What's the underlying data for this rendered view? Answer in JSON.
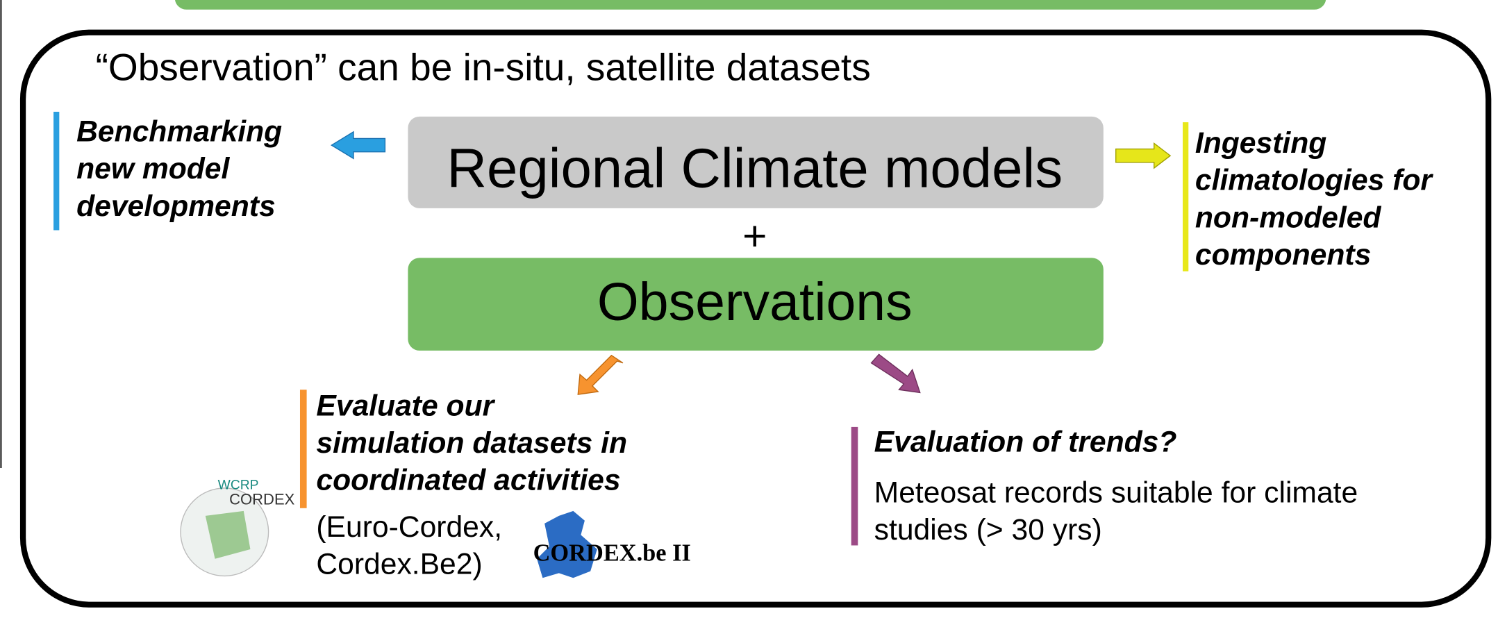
{
  "heading": "“Observation” can be in-situ, satellite datasets",
  "model_box": "Regional Climate models",
  "plus": "+",
  "obs_box": "Observations",
  "left_note": [
    "Benchmarking",
    "new model",
    "developments"
  ],
  "right_note": [
    "Ingesting",
    "climatologies for",
    "non-modeled",
    "components"
  ],
  "bottom_left": {
    "title": [
      "Evaluate our",
      "simulation datasets in",
      "coordinated activities"
    ],
    "body": [
      "(Euro-Cordex,",
      "Cordex.Be2)"
    ],
    "logo_wcrp": "WCRP",
    "logo_cordex": "CORDEX",
    "logo_be": "CORDEX.be II"
  },
  "bottom_right": {
    "title": "Evaluation of trends?",
    "body": [
      "Meteosat records suitable for climate",
      "studies (> 30 yrs)"
    ]
  }
}
